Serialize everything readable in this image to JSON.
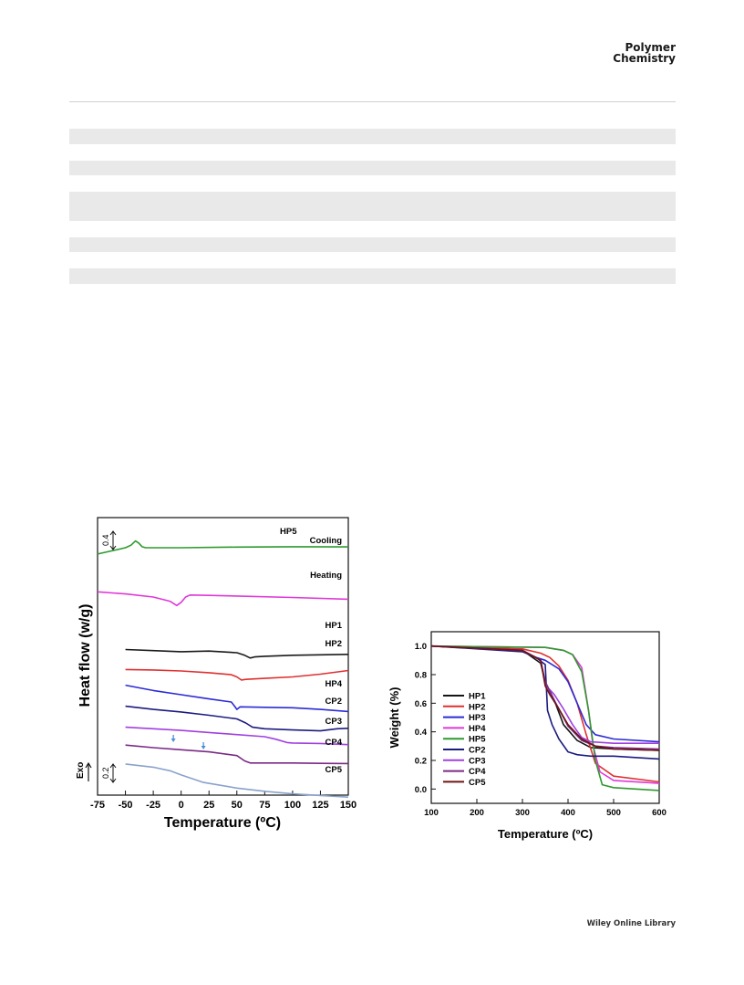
{
  "journal": {
    "line1": "Polymer",
    "line2": "Chemistry"
  },
  "footer": "Wiley Online Library",
  "chart_data": [
    {
      "type": "line",
      "title": "",
      "xlabel": "Temperature (ºC)",
      "ylabel": "Heat flow (w/g)",
      "xlim": [
        -75,
        150
      ],
      "xticks": [
        "-75",
        "-50",
        "-25",
        "0",
        "25",
        "50",
        "75",
        "100",
        "125",
        "150"
      ],
      "grid": false,
      "legend": "none",
      "annotations": {
        "exo": "Exo",
        "scale_top": "0.4",
        "scale_bottom": "0.2"
      },
      "series": [
        {
          "name": "HP5",
          "label": "Cooling",
          "color": "#2e9a2e",
          "x": [
            -75,
            -50,
            -45,
            -41,
            -38,
            -35,
            -32,
            -25,
            0,
            50,
            100,
            150
          ],
          "y": [
            -0.3,
            0.0,
            0.12,
            0.32,
            0.22,
            0.05,
            0.0,
            0.0,
            0.0,
            0.03,
            0.05,
            0.04
          ]
        },
        {
          "name": "",
          "label": "Heating",
          "color": "#e038d8",
          "x": [
            -75,
            -50,
            -25,
            -10,
            -4,
            0,
            4,
            8,
            25,
            50,
            100,
            150
          ],
          "y": [
            -2.1,
            -2.2,
            -2.35,
            -2.55,
            -2.75,
            -2.6,
            -2.35,
            -2.25,
            -2.27,
            -2.3,
            -2.37,
            -2.45
          ]
        },
        {
          "name": "HP1",
          "label": "HP1",
          "color": "#1a1a1a",
          "x": [
            -50,
            -25,
            0,
            25,
            50,
            57,
            62,
            66,
            75,
            100,
            125,
            150
          ],
          "y": [
            -4.85,
            -4.9,
            -4.95,
            -4.92,
            -5.0,
            -5.12,
            -5.25,
            -5.2,
            -5.17,
            -5.12,
            -5.1,
            -5.08
          ]
        },
        {
          "name": "HP2",
          "label": "HP2",
          "color": "#e03030",
          "x": [
            -50,
            -25,
            0,
            25,
            45,
            50,
            54,
            58,
            75,
            100,
            125,
            150
          ],
          "y": [
            -5.8,
            -5.82,
            -5.87,
            -5.95,
            -6.05,
            -6.15,
            -6.3,
            -6.27,
            -6.22,
            -6.15,
            -6.02,
            -5.85
          ]
        },
        {
          "name": "HP4",
          "label": "HP4",
          "color": "#2b2bd6",
          "x": [
            -50,
            -25,
            0,
            25,
            45,
            48,
            50,
            53,
            75,
            100,
            125,
            150
          ],
          "y": [
            -6.55,
            -6.8,
            -7.0,
            -7.2,
            -7.35,
            -7.55,
            -7.7,
            -7.58,
            -7.6,
            -7.62,
            -7.7,
            -7.8
          ]
        },
        {
          "name": "CP2",
          "label": "CP2",
          "color": "#1c1c80",
          "x": [
            -50,
            -25,
            0,
            25,
            50,
            58,
            64,
            75,
            100,
            125,
            140,
            150
          ],
          "y": [
            -7.55,
            -7.7,
            -7.82,
            -7.98,
            -8.15,
            -8.35,
            -8.55,
            -8.62,
            -8.68,
            -8.72,
            -8.62,
            -8.6
          ]
        },
        {
          "name": "CP3",
          "label": "CP3",
          "color": "#a040e0",
          "x": [
            -50,
            -25,
            0,
            25,
            50,
            75,
            85,
            95,
            100,
            125,
            150
          ],
          "y": [
            -8.55,
            -8.62,
            -8.7,
            -8.8,
            -8.9,
            -9.0,
            -9.12,
            -9.28,
            -9.3,
            -9.32,
            -9.38
          ]
        },
        {
          "name": "CP4",
          "label": "CP4",
          "color": "#7a2a86",
          "x": [
            -50,
            -25,
            0,
            25,
            50,
            57,
            62,
            75,
            100,
            125,
            150
          ],
          "y": [
            -9.4,
            -9.52,
            -9.62,
            -9.72,
            -9.9,
            -10.15,
            -10.25,
            -10.25,
            -10.25,
            -10.27,
            -10.28
          ]
        },
        {
          "name": "CP5",
          "label": "CP5",
          "color": "#8aa2cc",
          "x": [
            -50,
            -25,
            -10,
            0,
            10,
            20,
            50,
            75,
            100,
            125,
            150
          ],
          "y": [
            -10.3,
            -10.45,
            -10.62,
            -10.82,
            -11.0,
            -11.18,
            -11.45,
            -11.6,
            -11.72,
            -11.8,
            -11.88
          ]
        }
      ],
      "markers": [
        {
          "name": "arrow-left",
          "x": -7,
          "color": "#4a8ed8"
        },
        {
          "name": "arrow-right",
          "x": 20,
          "color": "#4a8ed8"
        }
      ]
    },
    {
      "type": "line",
      "title": "",
      "xlabel": "Temperature (ºC)",
      "ylabel": "Weight (%)",
      "xlim": [
        100,
        600
      ],
      "ylim": [
        -0.1,
        1.1
      ],
      "xticks": [
        "100",
        "200",
        "300",
        "400",
        "500",
        "600"
      ],
      "yticks": [
        "0.0",
        "0.2",
        "0.4",
        "0.6",
        "0.8",
        "1.0"
      ],
      "grid": false,
      "legend": "left-center",
      "series": [
        {
          "name": "HP1",
          "color": "#151515",
          "x": [
            100,
            300,
            340,
            350,
            370,
            390,
            420,
            450,
            500,
            600
          ],
          "y": [
            1.0,
            0.97,
            0.88,
            0.75,
            0.62,
            0.45,
            0.34,
            0.29,
            0.28,
            0.27
          ]
        },
        {
          "name": "HP2",
          "color": "#e03030",
          "x": [
            100,
            300,
            340,
            360,
            380,
            400,
            420,
            440,
            460,
            500,
            600
          ],
          "y": [
            1.0,
            0.98,
            0.95,
            0.92,
            0.86,
            0.76,
            0.6,
            0.38,
            0.18,
            0.09,
            0.05
          ]
        },
        {
          "name": "HP3",
          "color": "#2b2bd6",
          "x": [
            100,
            300,
            330,
            350,
            380,
            400,
            420,
            440,
            460,
            500,
            600
          ],
          "y": [
            1.0,
            0.97,
            0.92,
            0.9,
            0.84,
            0.75,
            0.6,
            0.45,
            0.38,
            0.35,
            0.33
          ]
        },
        {
          "name": "HP4",
          "color": "#e038d8",
          "x": [
            100,
            350,
            390,
            410,
            430,
            445,
            455,
            470,
            500,
            600
          ],
          "y": [
            1.0,
            0.99,
            0.97,
            0.94,
            0.85,
            0.55,
            0.3,
            0.12,
            0.06,
            0.04
          ]
        },
        {
          "name": "HP5",
          "color": "#2e9a2e",
          "x": [
            100,
            350,
            390,
            410,
            430,
            445,
            460,
            475,
            500,
            600
          ],
          "y": [
            1.0,
            0.99,
            0.97,
            0.94,
            0.82,
            0.55,
            0.2,
            0.03,
            0.01,
            -0.01
          ]
        },
        {
          "name": "CP2",
          "color": "#1c1c80",
          "x": [
            100,
            300,
            330,
            350,
            355,
            365,
            380,
            400,
            420,
            450,
            500,
            600
          ],
          "y": [
            1.0,
            0.96,
            0.92,
            0.87,
            0.55,
            0.45,
            0.35,
            0.26,
            0.24,
            0.23,
            0.23,
            0.21
          ]
        },
        {
          "name": "CP3",
          "color": "#a040e0",
          "x": [
            100,
            300,
            340,
            350,
            370,
            390,
            410,
            430,
            450,
            500,
            600
          ],
          "y": [
            1.0,
            0.97,
            0.9,
            0.73,
            0.66,
            0.56,
            0.45,
            0.36,
            0.33,
            0.32,
            0.32
          ]
        },
        {
          "name": "CP4",
          "color": "#7a2a86",
          "x": [
            100,
            300,
            340,
            350,
            360,
            380,
            400,
            430,
            460,
            500,
            600
          ],
          "y": [
            1.0,
            0.97,
            0.9,
            0.75,
            0.68,
            0.56,
            0.44,
            0.34,
            0.3,
            0.29,
            0.28
          ]
        },
        {
          "name": "CP5",
          "color": "#6e1414",
          "x": [
            100,
            300,
            340,
            350,
            360,
            380,
            400,
            430,
            460,
            500,
            600
          ],
          "y": [
            1.0,
            0.97,
            0.9,
            0.72,
            0.66,
            0.56,
            0.45,
            0.35,
            0.3,
            0.28,
            0.27
          ]
        }
      ]
    }
  ]
}
